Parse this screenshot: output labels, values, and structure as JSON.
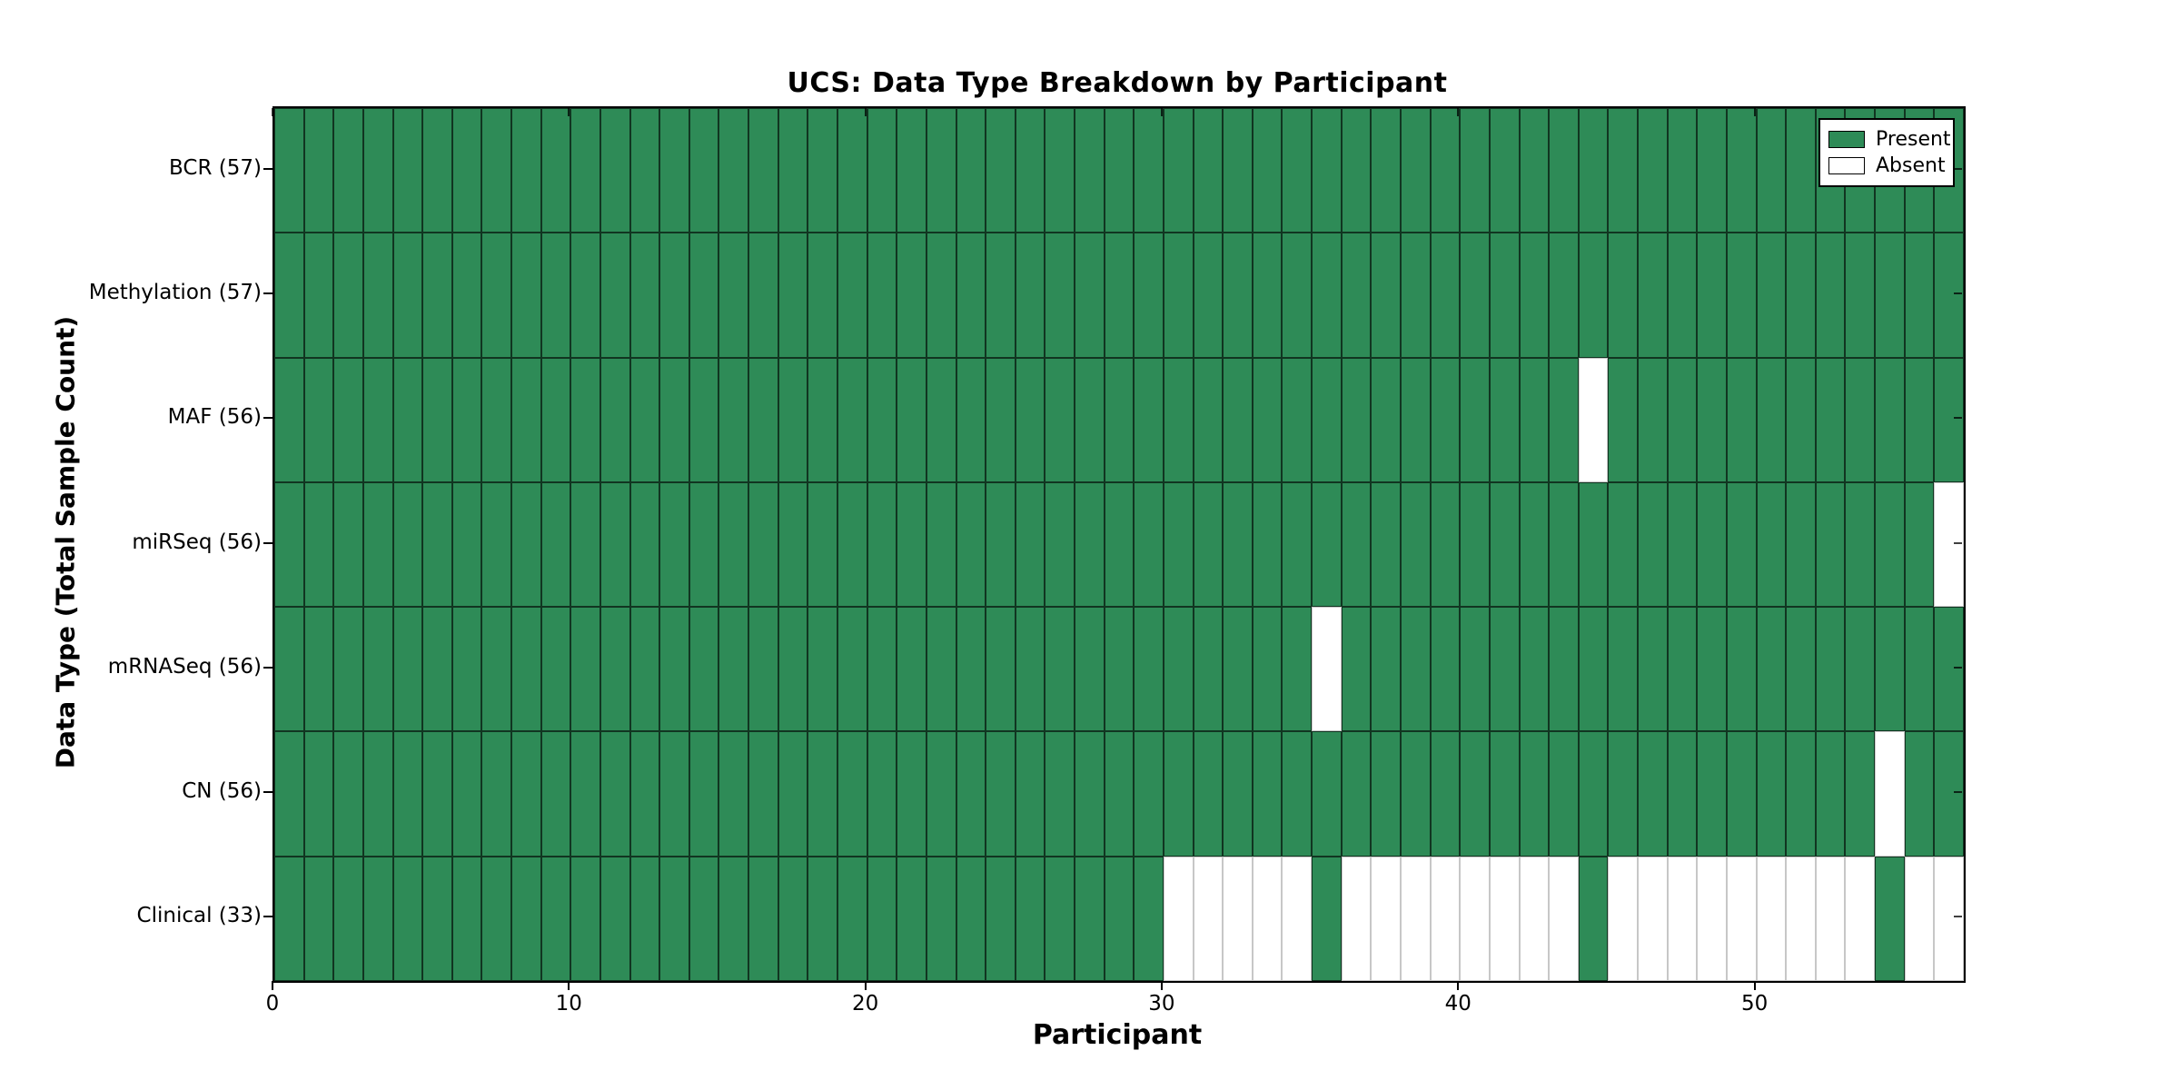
{
  "title": "UCS: Data Type Breakdown by Participant",
  "chart_data": {
    "type": "heatmap",
    "title": "UCS: Data Type Breakdown by Participant",
    "xlabel": "Participant",
    "ylabel": "Data Type (Total Sample Count)",
    "x_range": [
      0,
      57
    ],
    "n_participants": 57,
    "x_ticks": [
      0,
      10,
      20,
      30,
      40,
      50
    ],
    "grid": false,
    "legend_position": "upper-right-inside",
    "legend": [
      {
        "label": "Present",
        "color": "#2e8b57"
      },
      {
        "label": "Absent",
        "color": "#ffffff"
      }
    ],
    "colors": {
      "present": "#2e8b57",
      "absent": "#ffffff",
      "axis": "#000000"
    },
    "rows": [
      {
        "label": "BCR (57)",
        "data_type": "BCR",
        "present_count": 57,
        "absent_participants": []
      },
      {
        "label": "Methylation (57)",
        "data_type": "Methylation",
        "present_count": 57,
        "absent_participants": []
      },
      {
        "label": "MAF (56)",
        "data_type": "MAF",
        "present_count": 56,
        "absent_participants": [
          44
        ]
      },
      {
        "label": "miRSeq (56)",
        "data_type": "miRSeq",
        "present_count": 56,
        "absent_participants": [
          56
        ]
      },
      {
        "label": "mRNASeq (56)",
        "data_type": "mRNASeq",
        "present_count": 56,
        "absent_participants": [
          35
        ]
      },
      {
        "label": "CN (56)",
        "data_type": "CN",
        "present_count": 56,
        "absent_participants": [
          54
        ]
      },
      {
        "label": "Clinical (33)",
        "data_type": "Clinical",
        "present_count": 33,
        "absent_participants": [
          30,
          31,
          32,
          33,
          34,
          36,
          37,
          38,
          39,
          40,
          41,
          42,
          43,
          45,
          46,
          47,
          48,
          49,
          50,
          51,
          52,
          53,
          55,
          56
        ]
      }
    ]
  }
}
